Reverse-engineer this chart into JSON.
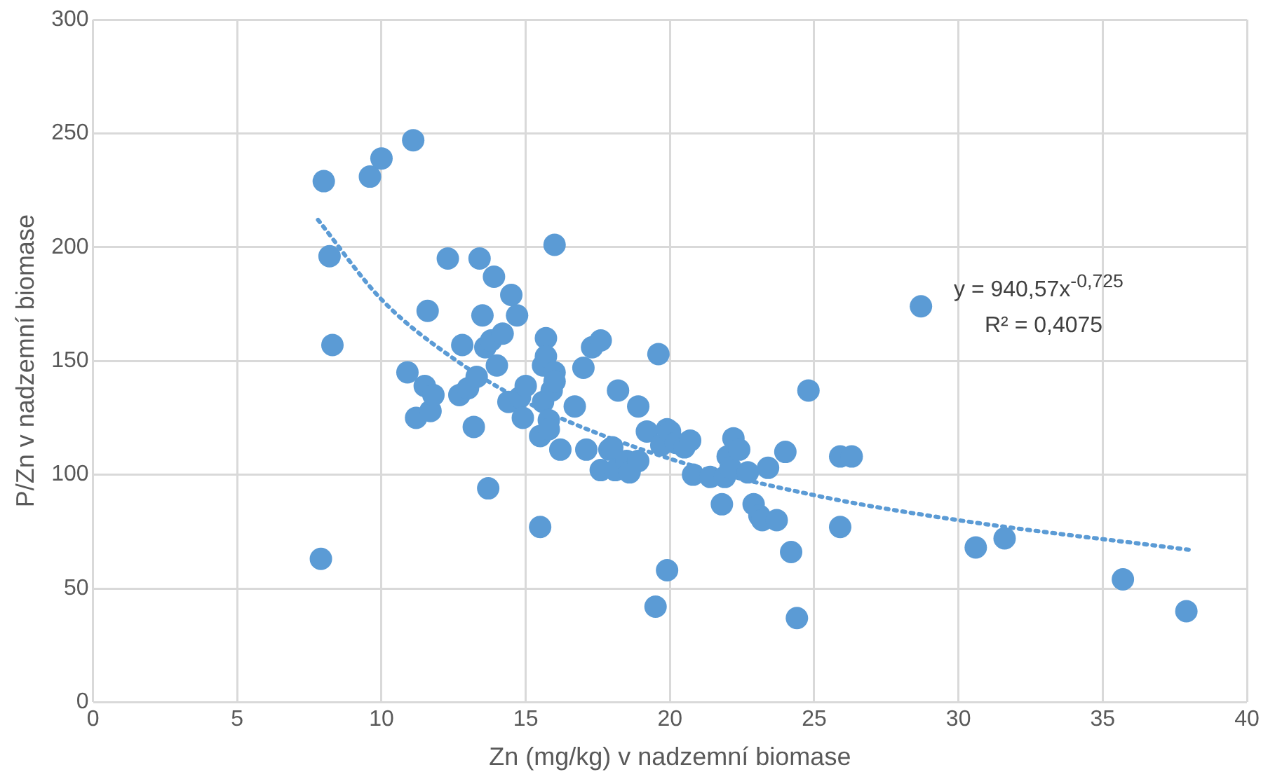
{
  "chart_data": {
    "type": "scatter",
    "xlabel": "Zn (mg/kg) v nadzemní biomase",
    "ylabel": "P/Zn v nadzemní biomase",
    "xlim": [
      0,
      40
    ],
    "xticks": [
      0,
      5,
      10,
      15,
      20,
      25,
      30,
      35,
      40
    ],
    "ylim": [
      0,
      300
    ],
    "yticks": [
      0,
      50,
      100,
      150,
      200,
      250,
      300
    ],
    "grid": true,
    "legend": false,
    "annotations": [
      "y = 940,57x$^{-0,725}$",
      "R² = 0,4075"
    ],
    "series": [
      {
        "color": "#5b9bd5",
        "marker": "circle",
        "x": [
          8.0,
          8.2,
          8.3,
          7.9,
          9.6,
          10.0,
          11.1,
          11.6,
          11.2,
          11.5,
          11.7,
          11.8,
          10.9,
          12.3,
          12.7,
          12.8,
          13.0,
          13.2,
          13.3,
          13.4,
          13.5,
          13.6,
          13.7,
          13.8,
          13.9,
          14.0,
          14.2,
          14.5,
          14.4,
          14.7,
          14.8,
          14.9,
          15.0,
          15.5,
          15.5,
          15.6,
          15.7,
          15.7,
          15.6,
          15.8,
          15.8,
          15.9,
          16.0,
          16.0,
          16.0,
          16.2,
          16.7,
          17.0,
          17.1,
          17.3,
          17.6,
          17.6,
          17.9,
          18.0,
          18.1,
          18.2,
          18.5,
          18.6,
          18.9,
          18.9,
          19.2,
          19.5,
          19.6,
          19.7,
          19.9,
          19.9,
          20.0,
          20.2,
          20.5,
          20.7,
          20.8,
          21.4,
          21.8,
          21.9,
          22.0,
          22.1,
          22.2,
          22.4,
          22.7,
          22.9,
          23.1,
          23.2,
          23.4,
          23.7,
          24.0,
          24.2,
          24.4,
          24.8,
          25.9,
          26.3,
          25.9,
          28.7,
          30.6,
          31.6,
          35.7,
          37.9
        ],
        "values": [
          229,
          196,
          157,
          63,
          231,
          239,
          247,
          172,
          125,
          139,
          128,
          135,
          145,
          195,
          135,
          157,
          138,
          121,
          143,
          195,
          170,
          156,
          94,
          159,
          187,
          148,
          162,
          179,
          132,
          170,
          134,
          125,
          139,
          117,
          77,
          148,
          160,
          152,
          132,
          124,
          120,
          137,
          201,
          145,
          141,
          111,
          130,
          147,
          111,
          156,
          159,
          102,
          111,
          112,
          102,
          137,
          106,
          101,
          106,
          130,
          119,
          42,
          153,
          113,
          120,
          58,
          119,
          114,
          112,
          115,
          100,
          99,
          87,
          99,
          108,
          103,
          116,
          111,
          101,
          87,
          82,
          80,
          103,
          80,
          110,
          66,
          37,
          137,
          108,
          108,
          77,
          174,
          68,
          72,
          54,
          40
        ]
      },
      {
        "type": "line",
        "color": "#5b9bd5",
        "marker": "none",
        "line_style": "dotted",
        "x": [
          7.8,
          10,
          12.5,
          15,
          20,
          25,
          30,
          38
        ],
        "values": [
          212,
          177,
          151,
          132,
          107,
          91,
          80,
          67
        ]
      }
    ]
  }
}
